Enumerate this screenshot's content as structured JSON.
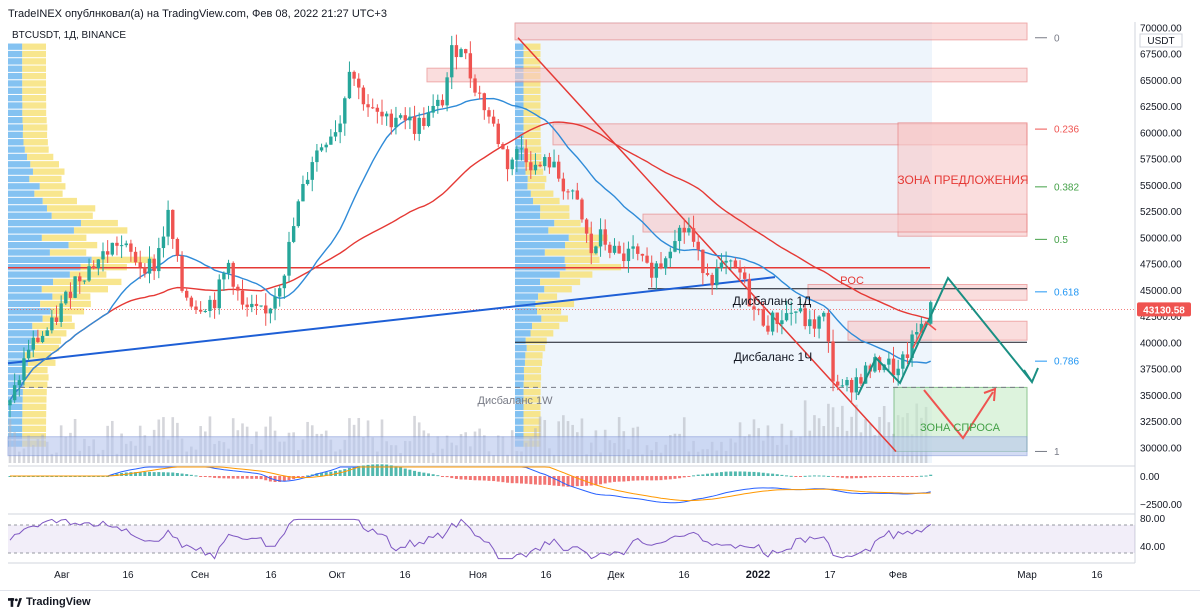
{
  "header": {
    "attribution": "TradeINEX опублнковал(а) на TradingView.com, Фев 08, 2022 21:27 UTC+3",
    "symbol": "BTCUSDT, 1Д, BINANCE",
    "currency": "USDT",
    "brand": "TradingView"
  },
  "colors": {
    "up": "#26a69a",
    "down": "#ef5350",
    "blue_ma": "#2f8bd8",
    "red_ma": "#e53935",
    "zone_red": "#f8c8c8",
    "zone_green": "#c8ecc8",
    "zone_blue": "#b7c6ee",
    "arrow_teal": "#1a8f83"
  },
  "chart_data": {
    "type": "candlestick",
    "title": "BTCUSDT, 1Д, BINANCE",
    "y_axis": {
      "ylim": [
        28500,
        70500
      ],
      "ticks": [
        70000,
        67500,
        65000,
        62500,
        60000,
        57500,
        55000,
        52500,
        50000,
        47500,
        45000,
        42500,
        40000,
        37500,
        35000,
        32500,
        30000
      ],
      "tick_labels": [
        "70000.00",
        "67500.00",
        "65000.00",
        "62500.00",
        "60000.00",
        "57500.00",
        "55000.00",
        "52500.00",
        "50000.00",
        "47500.00",
        "45000.00",
        "42500.00",
        "40000.00",
        "37500.00",
        "35000.00",
        "32500.00",
        "30000.00"
      ]
    },
    "x_axis": {
      "tick_labels": [
        "Авг",
        "16",
        "Сен",
        "16",
        "Окт",
        "16",
        "Ноя",
        "16",
        "Дек",
        "16",
        "2022",
        "17",
        "Фев",
        "Мар",
        "16"
      ]
    },
    "last_price": 43130.58,
    "last_price_label": "43130.58",
    "price_path": [
      [
        0,
        34000
      ],
      [
        4,
        39500
      ],
      [
        9,
        41500
      ],
      [
        14,
        46000
      ],
      [
        18,
        47500
      ],
      [
        23,
        49500
      ],
      [
        28,
        47500
      ],
      [
        31,
        47300
      ],
      [
        34,
        52000
      ],
      [
        37,
        45000
      ],
      [
        40,
        43500
      ],
      [
        44,
        44000
      ],
      [
        47,
        47500
      ],
      [
        50,
        43200
      ],
      [
        55,
        42500
      ],
      [
        59,
        47000
      ],
      [
        62,
        53000
      ],
      [
        65,
        57500
      ],
      [
        68,
        59500
      ],
      [
        71,
        61000
      ],
      [
        73,
        66500
      ],
      [
        75,
        64000
      ],
      [
        78,
        61800
      ],
      [
        81,
        61000
      ],
      [
        84,
        62000
      ],
      [
        87,
        60500
      ],
      [
        90,
        61500
      ],
      [
        93,
        63000
      ],
      [
        95,
        67500
      ],
      [
        97,
        68500
      ],
      [
        99,
        65500
      ],
      [
        101,
        63500
      ],
      [
        104,
        60500
      ],
      [
        107,
        57000
      ],
      [
        110,
        58500
      ],
      [
        113,
        56500
      ],
      [
        116,
        57200
      ],
      [
        119,
        55000
      ],
      [
        122,
        53000
      ],
      [
        125,
        48500
      ],
      [
        127,
        50000
      ],
      [
        131,
        48000
      ],
      [
        134,
        48500
      ],
      [
        137,
        46800
      ],
      [
        140,
        47500
      ],
      [
        143,
        50500
      ],
      [
        146,
        50800
      ],
      [
        148,
        48000
      ],
      [
        151,
        46300
      ],
      [
        154,
        47200
      ],
      [
        157,
        46500
      ],
      [
        160,
        43000
      ],
      [
        163,
        41800
      ],
      [
        166,
        42500
      ],
      [
        169,
        43000
      ],
      [
        172,
        41500
      ],
      [
        175,
        42300
      ],
      [
        177,
        36800
      ],
      [
        179,
        35300
      ],
      [
        182,
        36500
      ],
      [
        185,
        37500
      ],
      [
        188,
        38200
      ],
      [
        191,
        37000
      ],
      [
        193,
        39000
      ],
      [
        196,
        41800
      ],
      [
        198,
        43130
      ]
    ],
    "fib_levels": [
      {
        "label": "0",
        "value": 69000
      },
      {
        "label": "0.236",
        "value": 60300
      },
      {
        "label": "0.382",
        "value": 54800
      },
      {
        "label": "0.5",
        "value": 49800
      },
      {
        "label": "0.618",
        "value": 44800
      },
      {
        "label": "0.786",
        "value": 38200
      },
      {
        "label": "1",
        "value": 29600
      }
    ],
    "zones": [
      {
        "name": "supply-top-a",
        "low": 68800,
        "high": 70400
      },
      {
        "name": "supply-top-b",
        "low": 64800,
        "high": 66100
      },
      {
        "name": "supply-mid",
        "low": 58800,
        "high": 60800
      },
      {
        "name": "supply-main",
        "low": 50100,
        "high": 60900
      },
      {
        "name": "supply-low",
        "low": 50500,
        "high": 52200
      },
      {
        "name": "poc-zone",
        "low": 44000,
        "high": 45500
      },
      {
        "name": "imbalance-4h",
        "low": 40200,
        "high": 42000
      },
      {
        "name": "demand",
        "low": 29600,
        "high": 35700
      },
      {
        "name": "base",
        "low": 29200,
        "high": 31000
      }
    ],
    "levels": [
      {
        "name": "poc",
        "value": 47100
      },
      {
        "name": "imbalance-1d",
        "value": 45100
      },
      {
        "name": "imbalance-4h",
        "value": 40000
      },
      {
        "name": "imbalance-1w",
        "value": 35700
      }
    ],
    "oscillator": {
      "ticks": [
        0,
        -2500
      ],
      "tick_labels": [
        "0.00",
        "−2500.00"
      ]
    },
    "rsi": {
      "ticks": [
        80,
        40
      ],
      "tick_labels": [
        "80.00",
        "40.00"
      ],
      "band": [
        30,
        70
      ]
    },
    "annotations": {
      "supply_zone": "ЗОНА ПРЕДЛОЖЕНИЯ",
      "demand_zone": "ЗОНА СПРОСА",
      "poc": "POC",
      "imbalance_1d": "Дисбаланс 1Д",
      "imbalance_4h": "Дисбаланс 1Ч",
      "imbalance_1w": "Дисбаланс 1W"
    }
  }
}
